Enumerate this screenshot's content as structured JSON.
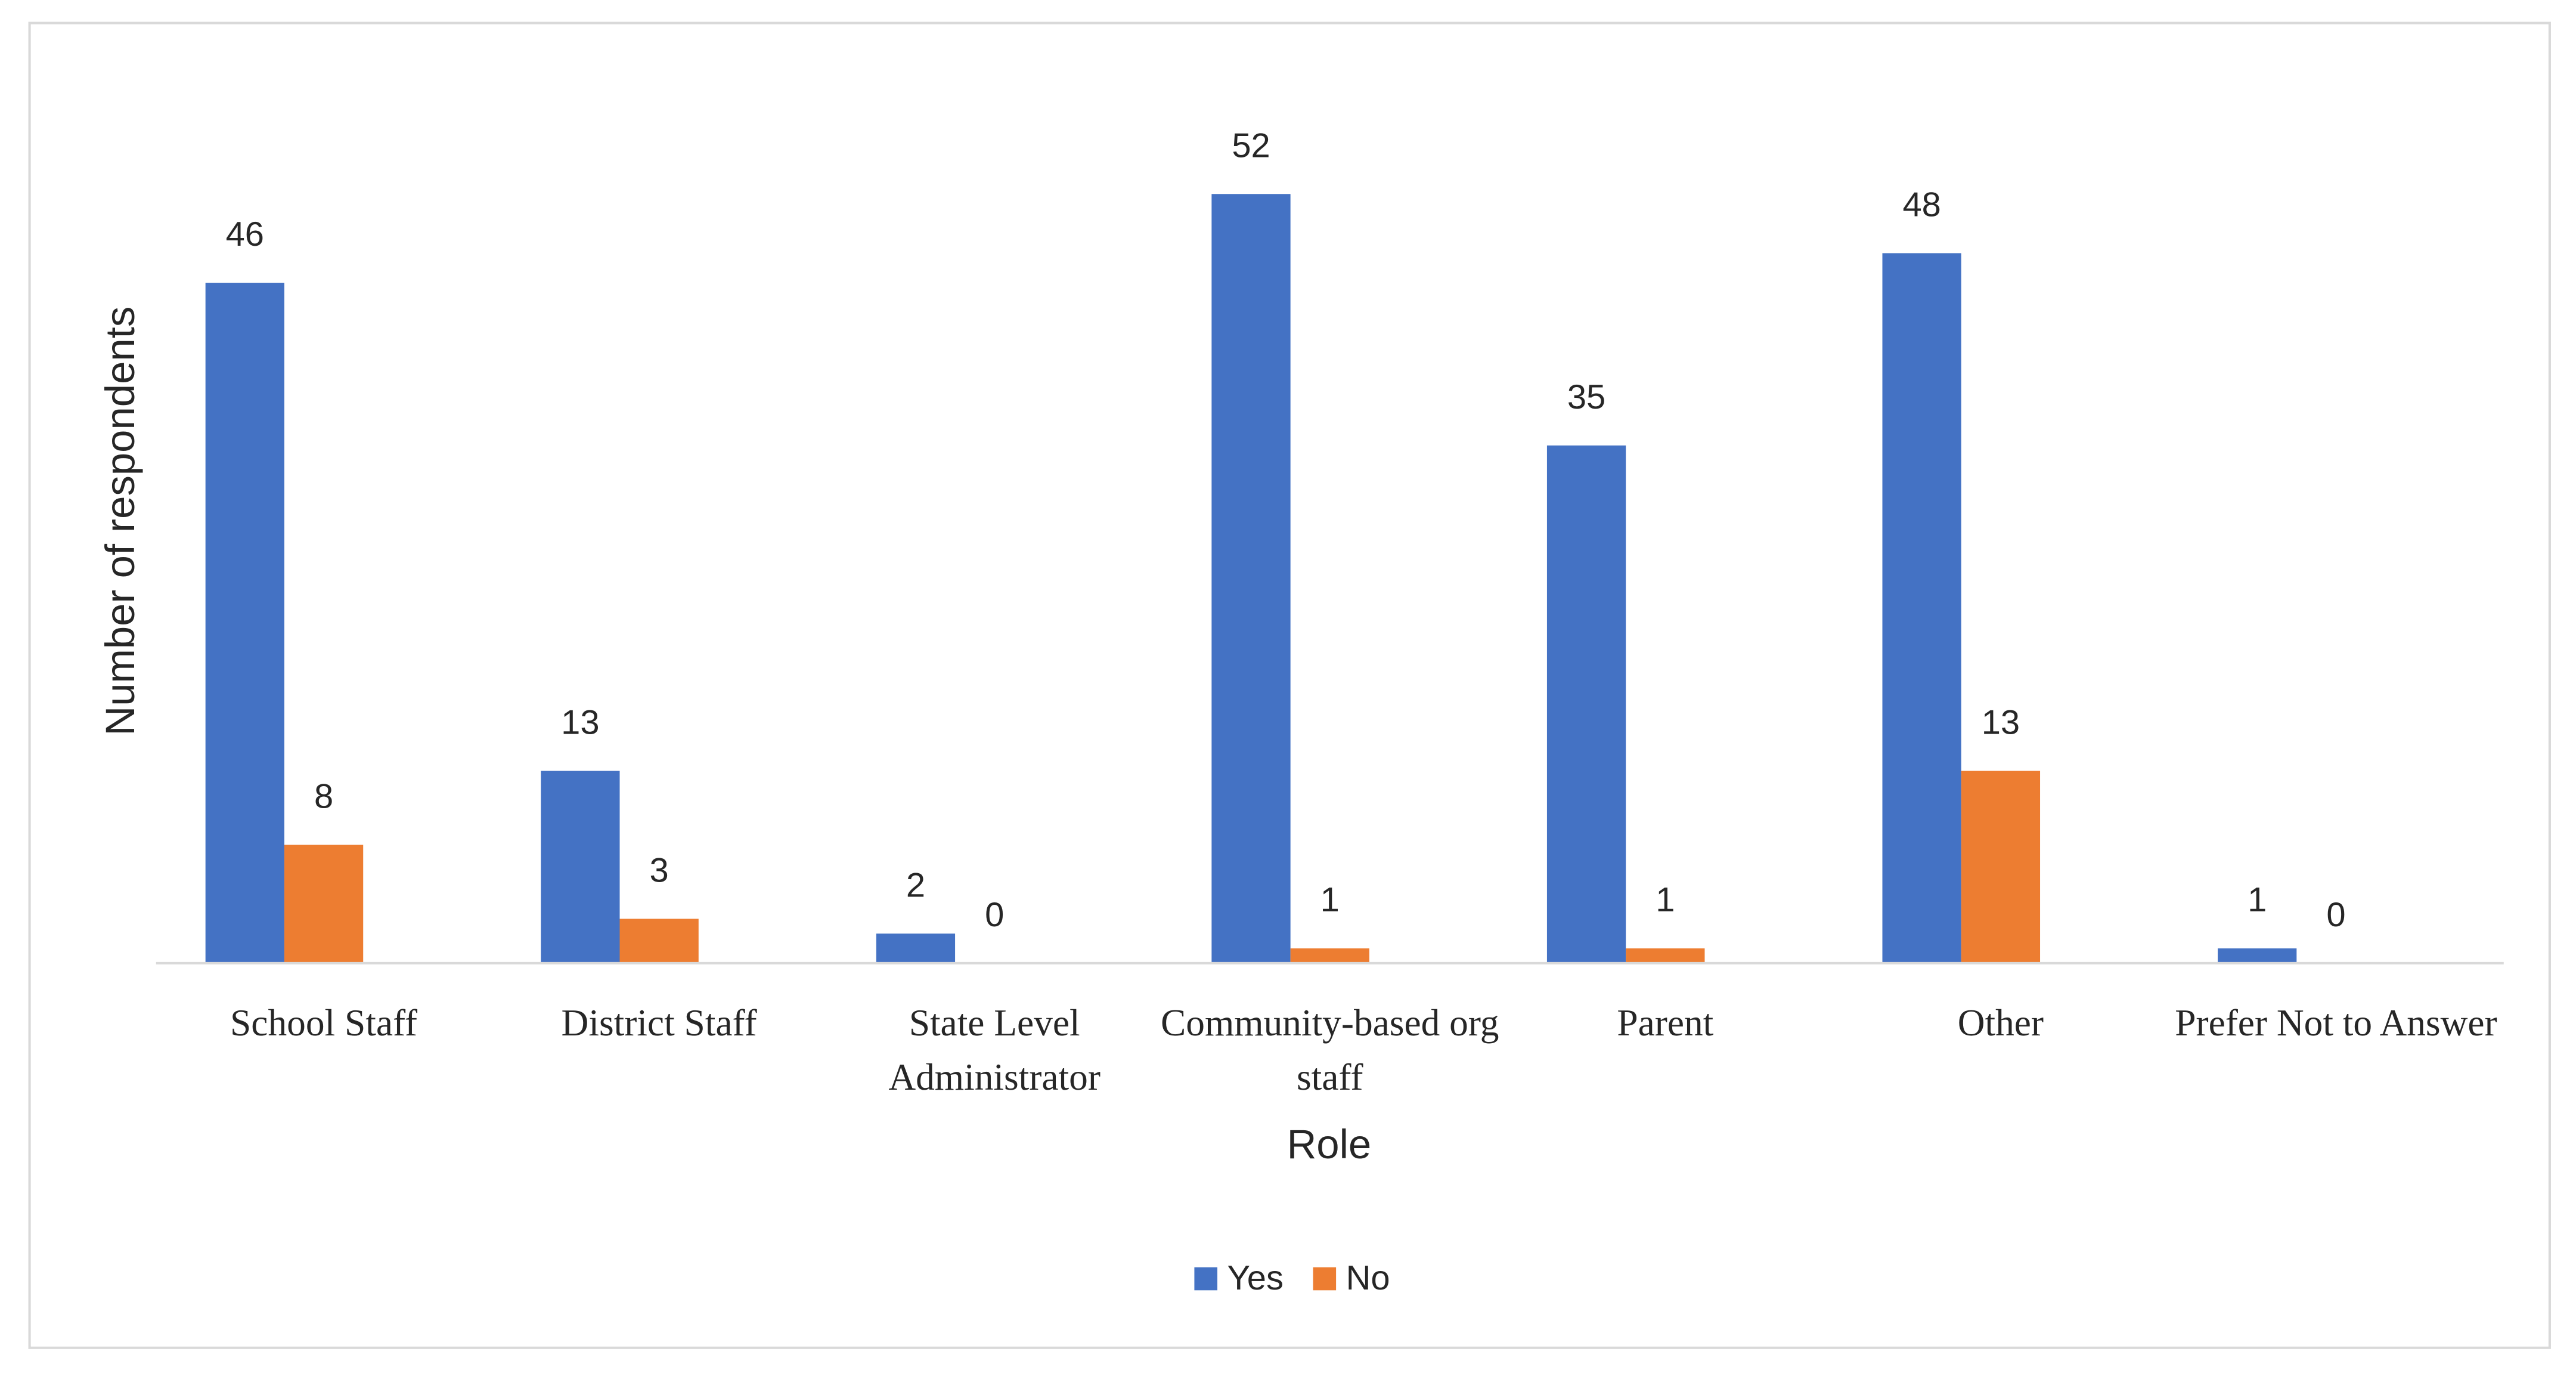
{
  "chart_data": {
    "type": "bar",
    "x_label": "Role",
    "y_label": "Number of respondents",
    "categories": [
      "School Staff",
      "District Staff",
      "State Level Administrator",
      "Community-based org staff",
      "Parent",
      "Other",
      "Prefer Not to Answer"
    ],
    "series": [
      {
        "name": "Yes",
        "color": "#4472c4",
        "values": [
          46,
          13,
          2,
          52,
          35,
          48,
          1
        ]
      },
      {
        "name": "No",
        "color": "#ed7d31",
        "values": [
          8,
          3,
          0,
          1,
          1,
          13,
          0
        ]
      }
    ],
    "ylim": [
      0,
      60
    ],
    "legend": "bottom"
  }
}
